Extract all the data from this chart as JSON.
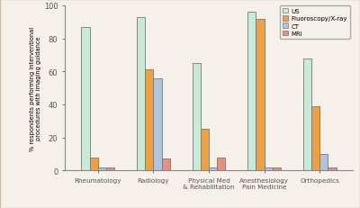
{
  "categories": [
    "Rheumatology",
    "Radiology",
    "Physical Med\n& Rehabilitation",
    "Anesthesiology\nPain Medicine",
    "Orthopedics"
  ],
  "series": {
    "US": [
      87,
      93,
      65,
      96,
      68
    ],
    "Fluoroscopy/X-ray": [
      8,
      61,
      25,
      92,
      39
    ],
    "CT": [
      2,
      56,
      2,
      2,
      10
    ],
    "MRI": [
      2,
      7,
      8,
      2,
      2
    ]
  },
  "colors": {
    "US": "#c8ead8",
    "Fluoroscopy/X-ray": "#f0a040",
    "CT": "#b0c4de",
    "MRI": "#e89080"
  },
  "ylabel": "% respondents performing interventional\nprocedures with imaging guidance",
  "ylim": [
    0,
    100
  ],
  "yticks": [
    0,
    20,
    40,
    60,
    80,
    100
  ],
  "bar_width": 0.15,
  "background_color": "#f5f0ea",
  "edge_color": "#777777",
  "legend_order": [
    "US",
    "Fluoroscopy/X-ray",
    "CT",
    "MRI"
  ],
  "figure_edge_color": "#ccbbaa"
}
